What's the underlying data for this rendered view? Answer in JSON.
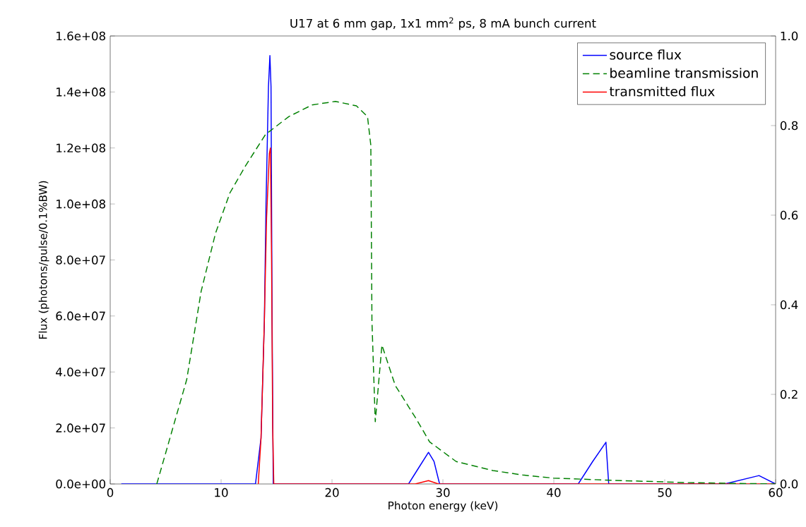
{
  "chart_data": {
    "type": "line",
    "title": "U17 at 6 mm gap, 1x1 mm$^{2}$  ps, 8 mA bunch current",
    "xlabel": "Photon energy (keV)",
    "ylabel": "Flux (photons/pulse/0.1%BW)",
    "xlim": [
      0,
      60
    ],
    "xticks": [
      0,
      10,
      20,
      30,
      40,
      50,
      60
    ],
    "ylim": [
      0,
      160000000
    ],
    "yticks": [
      {
        "value": 0,
        "label": "0.0e+00"
      },
      {
        "value": 20000000,
        "label": "2.0e+07"
      },
      {
        "value": 40000000,
        "label": "4.0e+07"
      },
      {
        "value": 60000000,
        "label": "6.0e+07"
      },
      {
        "value": 80000000,
        "label": "8.0e+07"
      },
      {
        "value": 100000000,
        "label": "1.0e+08"
      },
      {
        "value": 120000000,
        "label": "1.2e+08"
      },
      {
        "value": 140000000,
        "label": "1.4e+08"
      },
      {
        "value": 160000000,
        "label": "1.6e+08"
      }
    ],
    "y2lim": [
      0,
      1.0
    ],
    "y2ticks": [
      {
        "value": 0,
        "label": "0.0"
      },
      {
        "value": 0.2,
        "label": "0.2"
      },
      {
        "value": 0.4,
        "label": "0.4"
      },
      {
        "value": 0.6,
        "label": "0.6"
      },
      {
        "value": 0.8,
        "label": "0.8"
      },
      {
        "value": 1.0,
        "label": "1.0"
      }
    ],
    "legend": "top right",
    "grid": false,
    "series": [
      {
        "name": "source flux",
        "color": "#0000ff",
        "line_style": "solid",
        "x": [
          1,
          13.1,
          13.6,
          13.9,
          14.05,
          14.27,
          14.4,
          14.5,
          14.6,
          14.7,
          26.9,
          27.9,
          28.7,
          29.2,
          29.7,
          42.2,
          43.5,
          44.7,
          44.95,
          55.4,
          58.5,
          60
        ],
        "values": [
          0,
          0,
          16400000,
          58000000,
          100000000,
          142000000,
          153000000,
          142000000,
          58000000,
          0,
          0,
          6300000,
          11300000,
          8000000,
          0,
          0,
          8000000,
          14900000,
          0,
          0,
          3000000,
          0
        ]
      },
      {
        "name": "beamline transmission",
        "color": "#008000",
        "line_style": "dashed",
        "axis": "y2",
        "x": [
          4.2,
          6.9,
          8.2,
          9.5,
          10.8,
          12.2,
          14.0,
          16.1,
          18.2,
          20.3,
          22.2,
          23.2,
          23.5,
          23.6,
          23.9,
          24.5,
          25.7,
          27.6,
          28.8,
          31.2,
          34.5,
          37.2,
          40,
          45.5,
          52,
          60
        ],
        "values": [
          0,
          0.233,
          0.43,
          0.56,
          0.65,
          0.71,
          0.78,
          0.82,
          0.846,
          0.854,
          0.844,
          0.82,
          0.756,
          0.364,
          0.139,
          0.31,
          0.22,
          0.145,
          0.094,
          0.05,
          0.03,
          0.02,
          0.013,
          0.008,
          0.003,
          0
        ]
      },
      {
        "name": "transmitted flux",
        "color": "#ff0000",
        "line_style": "solid",
        "x": [
          13.35,
          13.6,
          13.9,
          14.1,
          14.35,
          14.45,
          14.55,
          14.65,
          14.75,
          27.5,
          28.7,
          29.6,
          60
        ],
        "values": [
          0,
          16400000,
          58000000,
          95000000,
          118000000,
          120000000,
          80000000,
          20000000,
          0,
          0,
          1200000,
          0,
          0
        ]
      }
    ]
  }
}
